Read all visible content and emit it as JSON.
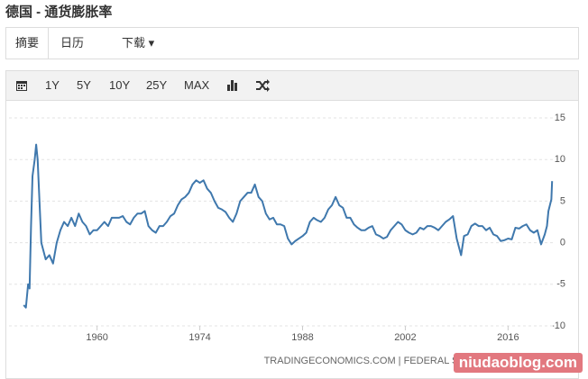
{
  "header": {
    "title": "德国 - 通货膨胀率"
  },
  "tabs": [
    "摘要",
    "日历",
    "下载"
  ],
  "toolbar": [
    "1Y",
    "5Y",
    "10Y",
    "25Y",
    "MAX"
  ],
  "footer": "TRADINGECONOMICS.COM | FEDERAL STATISTICAL OFFICE",
  "watermark": "niudaoblog.com",
  "chart_data": {
    "type": "line",
    "color": "#3f78ad",
    "grid": true,
    "xlim": [
      1948,
      2022.1
    ],
    "xticks": [
      1960,
      1974,
      1988,
      2002,
      2016
    ],
    "ylim": [
      -10,
      15
    ],
    "yticks": [
      -10,
      -5,
      0,
      5,
      10,
      15
    ],
    "x": [
      1950.0,
      1950.3,
      1950.6,
      1950.8,
      1951.0,
      1951.2,
      1951.5,
      1951.7,
      1951.9,
      1952.1,
      1952.4,
      1952.7,
      1953.0,
      1953.5,
      1954.0,
      1954.5,
      1955,
      1955.5,
      1956,
      1956.5,
      1957,
      1957.5,
      1958,
      1958.5,
      1959,
      1959.5,
      1960,
      1960.5,
      1961,
      1961.5,
      1962,
      1962.5,
      1963,
      1963.5,
      1964,
      1964.5,
      1965,
      1965.5,
      1966,
      1966.5,
      1967,
      1967.5,
      1968,
      1968.5,
      1969,
      1969.5,
      1970,
      1970.5,
      1971,
      1971.5,
      1972,
      1972.5,
      1973,
      1973.5,
      1974,
      1974.5,
      1975,
      1975.5,
      1976,
      1976.5,
      1977,
      1977.5,
      1978,
      1978.5,
      1979,
      1979.5,
      1980,
      1980.5,
      1981,
      1981.5,
      1982,
      1982.5,
      1983,
      1983.5,
      1984,
      1984.5,
      1985,
      1985.5,
      1986,
      1986.5,
      1987,
      1987.5,
      1988,
      1988.5,
      1989,
      1989.5,
      1990,
      1990.5,
      1991,
      1991.5,
      1992,
      1992.5,
      1993,
      1993.5,
      1994,
      1994.5,
      1995,
      1995.5,
      1996,
      1996.5,
      1997,
      1997.5,
      1998,
      1998.5,
      1999,
      1999.5,
      2000,
      2000.5,
      2001,
      2001.5,
      2002,
      2002.5,
      2003,
      2003.5,
      2004,
      2004.5,
      2005,
      2005.5,
      2006,
      2006.5,
      2007,
      2007.5,
      2008,
      2008.5,
      2009,
      2009.3,
      2009.6,
      2010,
      2010.5,
      2011,
      2011.5,
      2012,
      2012.5,
      2013,
      2013.5,
      2014,
      2014.5,
      2015,
      2015.5,
      2016,
      2016.5,
      2017,
      2017.5,
      2018,
      2018.5,
      2019,
      2019.5,
      2020,
      2020.5,
      2021,
      2021.3,
      2021.5,
      2021.7,
      2021.9,
      2022
    ],
    "values": [
      -7.5,
      -7.8,
      -5,
      -5.5,
      2,
      8,
      10,
      11.8,
      10,
      6,
      0,
      -1,
      -2,
      -1.5,
      -2.5,
      0,
      1.5,
      2.5,
      2,
      3,
      2,
      3.5,
      2.5,
      2,
      1,
      1.5,
      1.5,
      2,
      2.5,
      2,
      3,
      3,
      3,
      3.2,
      2.5,
      2.2,
      3,
      3.5,
      3.5,
      3.8,
      2,
      1.5,
      1.2,
      2,
      2,
      2.5,
      3.2,
      3.5,
      4.5,
      5.2,
      5.5,
      6,
      7,
      7.5,
      7.2,
      7.5,
      6.5,
      6,
      5,
      4.2,
      4,
      3.7,
      3,
      2.5,
      3.5,
      5,
      5.5,
      6,
      6,
      7,
      5.5,
      5,
      3.5,
      2.8,
      3,
      2.2,
      2.2,
      2,
      0.5,
      -0.2,
      0.2,
      0.5,
      0.8,
      1.2,
      2.5,
      3,
      2.7,
      2.5,
      3,
      4,
      4.5,
      5.5,
      4.5,
      4.2,
      3,
      3,
      2.2,
      1.8,
      1.5,
      1.5,
      1.8,
      2,
      1,
      0.8,
      0.5,
      0.7,
      1.5,
      2,
      2.5,
      2.2,
      1.5,
      1.2,
      1,
      1.2,
      1.8,
      1.6,
      2,
      2,
      1.8,
      1.5,
      2,
      2.5,
      2.8,
      3.2,
      0.5,
      -0.5,
      -1.5,
      0.8,
      1,
      2,
      2.3,
      2,
      2,
      1.5,
      1.8,
      1,
      0.8,
      0.2,
      0.3,
      0.5,
      0.4,
      1.8,
      1.7,
      2,
      2.2,
      1.5,
      1.2,
      1.5,
      -0.2,
      1,
      2,
      3.8,
      4.5,
      5.2,
      7.4
    ]
  }
}
